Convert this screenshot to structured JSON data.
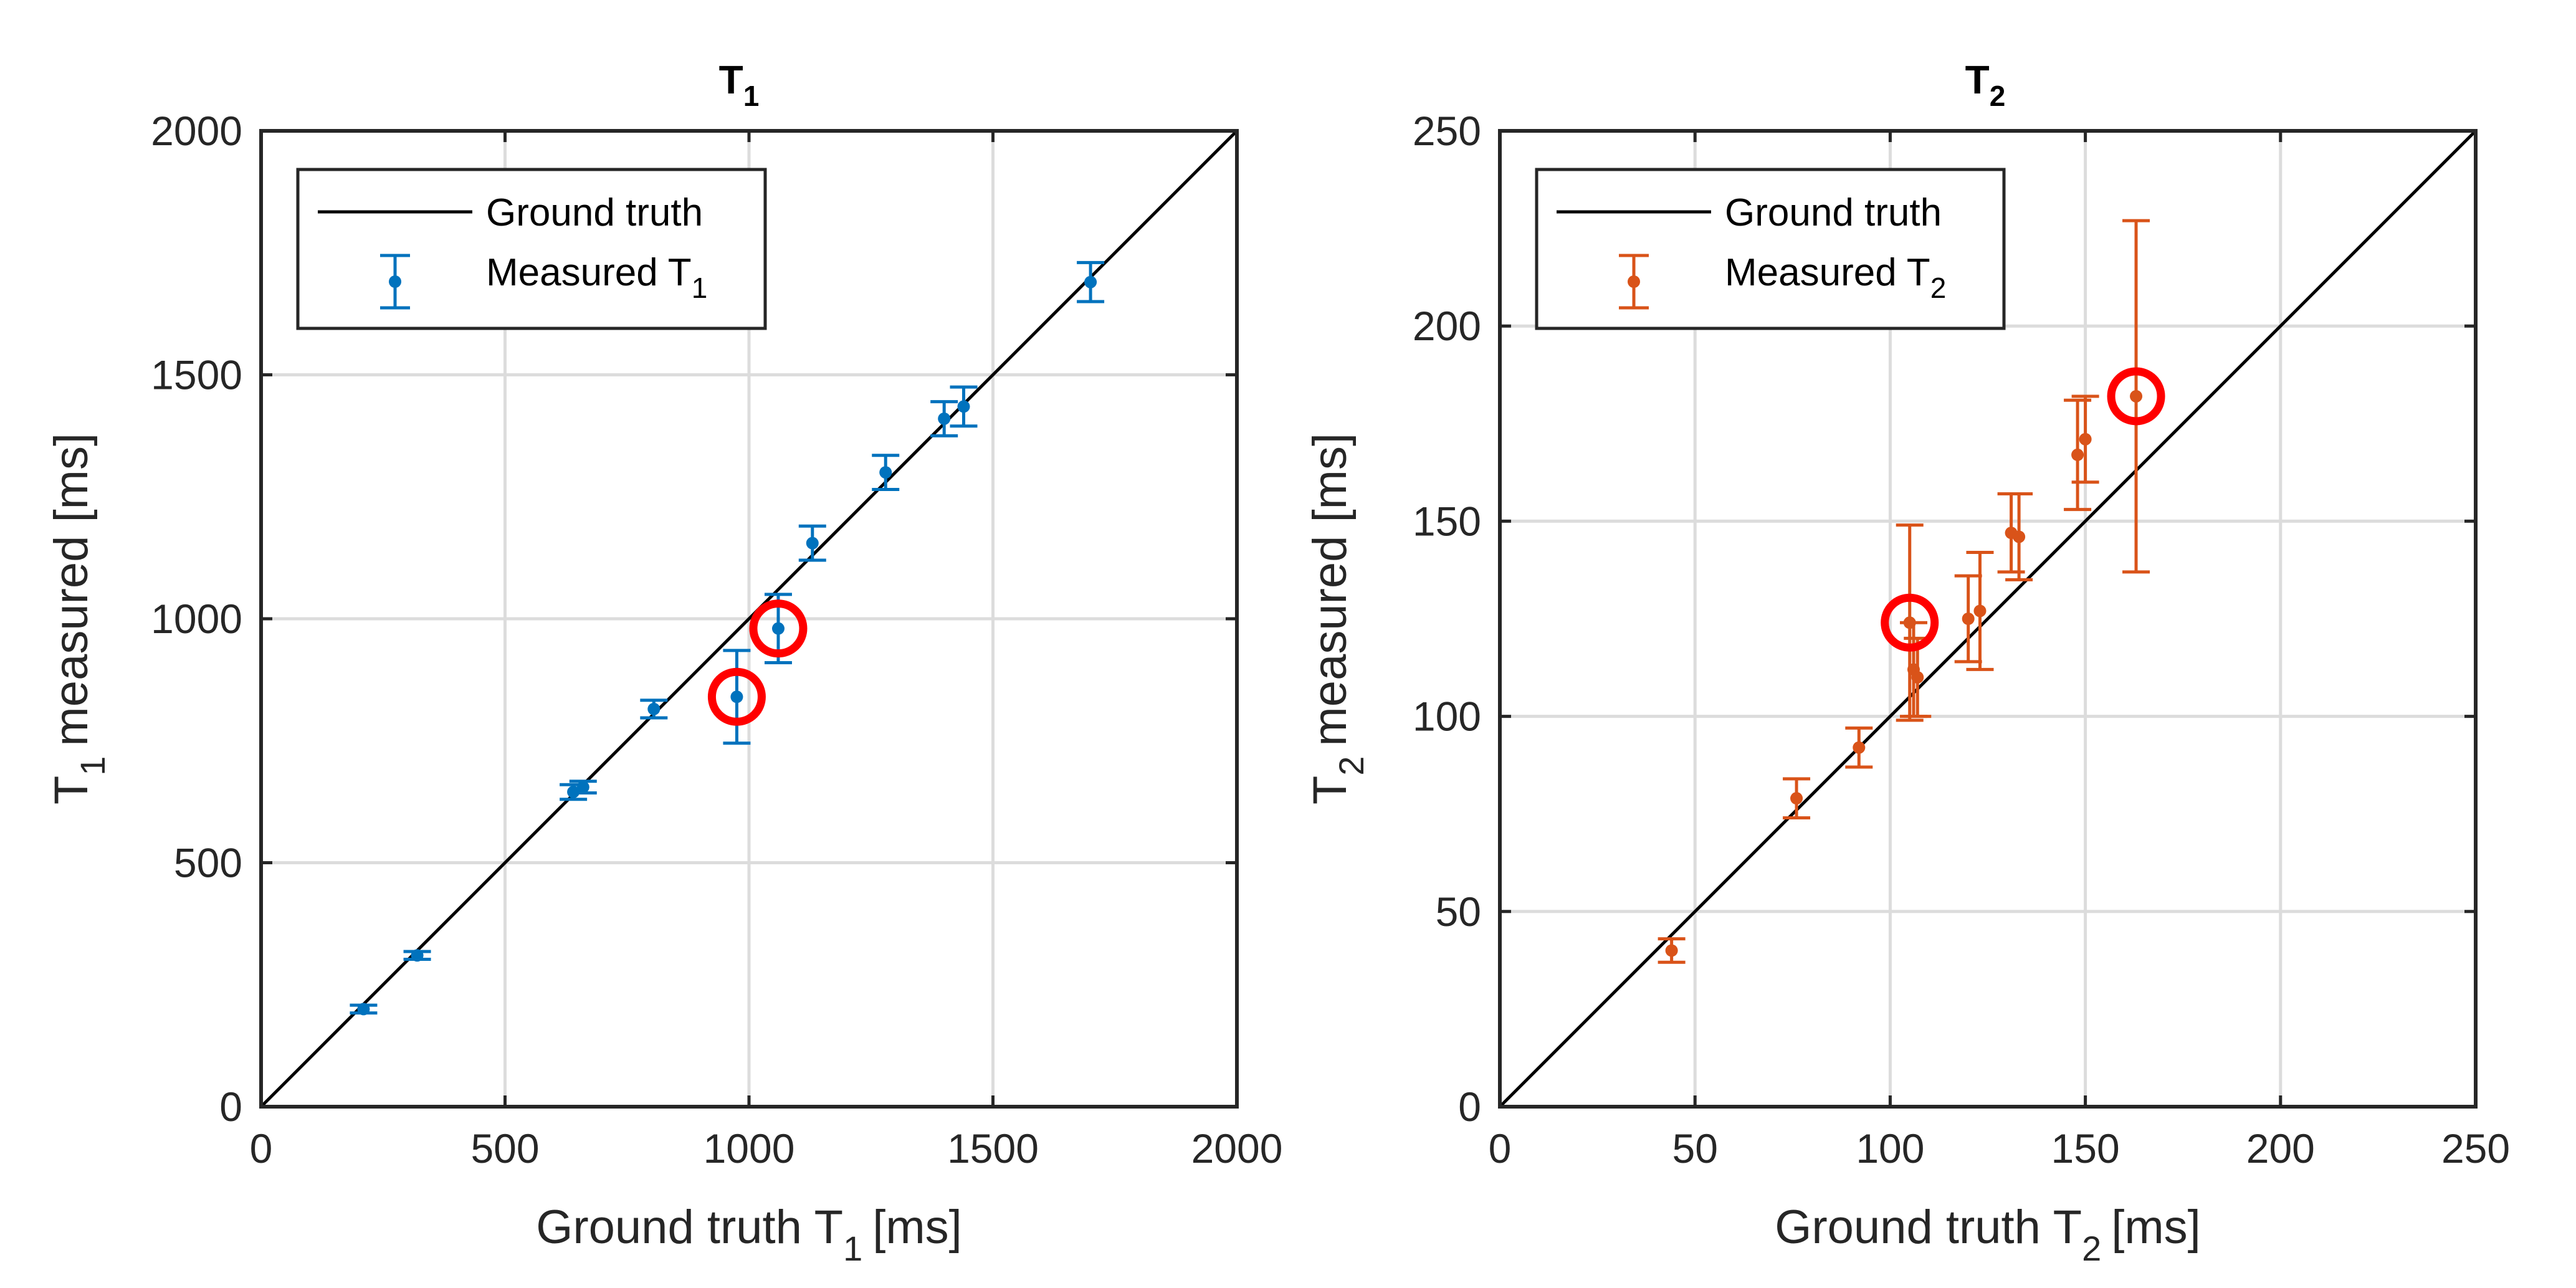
{
  "chart_data": [
    {
      "type": "scatter",
      "title": "T",
      "title_sub": "1",
      "xlabel": "Ground truth T",
      "xlabel_sub": "1",
      "xlabel_unit": "[ms]",
      "ylabel": "T",
      "ylabel_sub": "1",
      "ylabel_rest": "measured [ms]",
      "xlim": [
        0,
        2000
      ],
      "ylim": [
        0,
        2000
      ],
      "xticks": [
        "0",
        "500",
        "1000",
        "1500",
        "2000"
      ],
      "yticks": [
        "0",
        "500",
        "1000",
        "1500",
        "2000"
      ],
      "grid": true,
      "legend_position": "top-left",
      "legend": {
        "line_label": "Ground truth",
        "points_label": "Measured T",
        "points_label_sub": "1"
      },
      "series_color": "#0072BD",
      "reference_line": {
        "name": "Ground truth",
        "x": [
          0,
          2000
        ],
        "y": [
          0,
          2000
        ],
        "color": "#000000"
      },
      "points": [
        {
          "x": 210,
          "y": 200,
          "err": 8
        },
        {
          "x": 320,
          "y": 310,
          "err": 8
        },
        {
          "x": 640,
          "y": 645,
          "err": 15
        },
        {
          "x": 660,
          "y": 655,
          "err": 12
        },
        {
          "x": 805,
          "y": 815,
          "err": 18
        },
        {
          "x": 975,
          "y": 840,
          "err": 95
        },
        {
          "x": 1060,
          "y": 980,
          "err": 70
        },
        {
          "x": 1130,
          "y": 1155,
          "err": 35
        },
        {
          "x": 1280,
          "y": 1300,
          "err": 35
        },
        {
          "x": 1400,
          "y": 1410,
          "err": 35
        },
        {
          "x": 1440,
          "y": 1435,
          "err": 40
        },
        {
          "x": 1700,
          "y": 1690,
          "err": 40
        }
      ],
      "highlight_color": "#FF0000",
      "highlights": [
        {
          "x": 975,
          "y": 840
        },
        {
          "x": 1060,
          "y": 980
        }
      ]
    },
    {
      "type": "scatter",
      "title": "T",
      "title_sub": "2",
      "xlabel": "Ground truth T",
      "xlabel_sub": "2",
      "xlabel_unit": "[ms]",
      "ylabel": "T",
      "ylabel_sub": "2",
      "ylabel_rest": "measured [ms]",
      "xlim": [
        0,
        250
      ],
      "ylim": [
        0,
        250
      ],
      "xticks": [
        "0",
        "50",
        "100",
        "150",
        "200",
        "250"
      ],
      "yticks": [
        "0",
        "50",
        "100",
        "150",
        "200",
        "250"
      ],
      "grid": true,
      "legend_position": "top-left",
      "legend": {
        "line_label": "Ground truth",
        "points_label": "Measured T",
        "points_label_sub": "2"
      },
      "series_color": "#D95319",
      "reference_line": {
        "name": "Ground truth",
        "x": [
          0,
          250
        ],
        "y": [
          0,
          250
        ],
        "color": "#000000"
      },
      "points": [
        {
          "x": 44,
          "y": 40,
          "err": 3
        },
        {
          "x": 76,
          "y": 79,
          "err": 5
        },
        {
          "x": 92,
          "y": 92,
          "err": 5
        },
        {
          "x": 105,
          "y": 124,
          "err": 25
        },
        {
          "x": 106,
          "y": 112,
          "err": 12
        },
        {
          "x": 107,
          "y": 110,
          "err": 10
        },
        {
          "x": 120,
          "y": 125,
          "err": 11
        },
        {
          "x": 123,
          "y": 127,
          "err": 15
        },
        {
          "x": 131,
          "y": 147,
          "err": 10
        },
        {
          "x": 133,
          "y": 146,
          "err": 11
        },
        {
          "x": 148,
          "y": 167,
          "err": 14
        },
        {
          "x": 150,
          "y": 171,
          "err": 11
        },
        {
          "x": 163,
          "y": 182,
          "err": 45
        }
      ],
      "highlight_color": "#FF0000",
      "highlights": [
        {
          "x": 105,
          "y": 124
        },
        {
          "x": 163,
          "y": 182
        }
      ]
    }
  ]
}
